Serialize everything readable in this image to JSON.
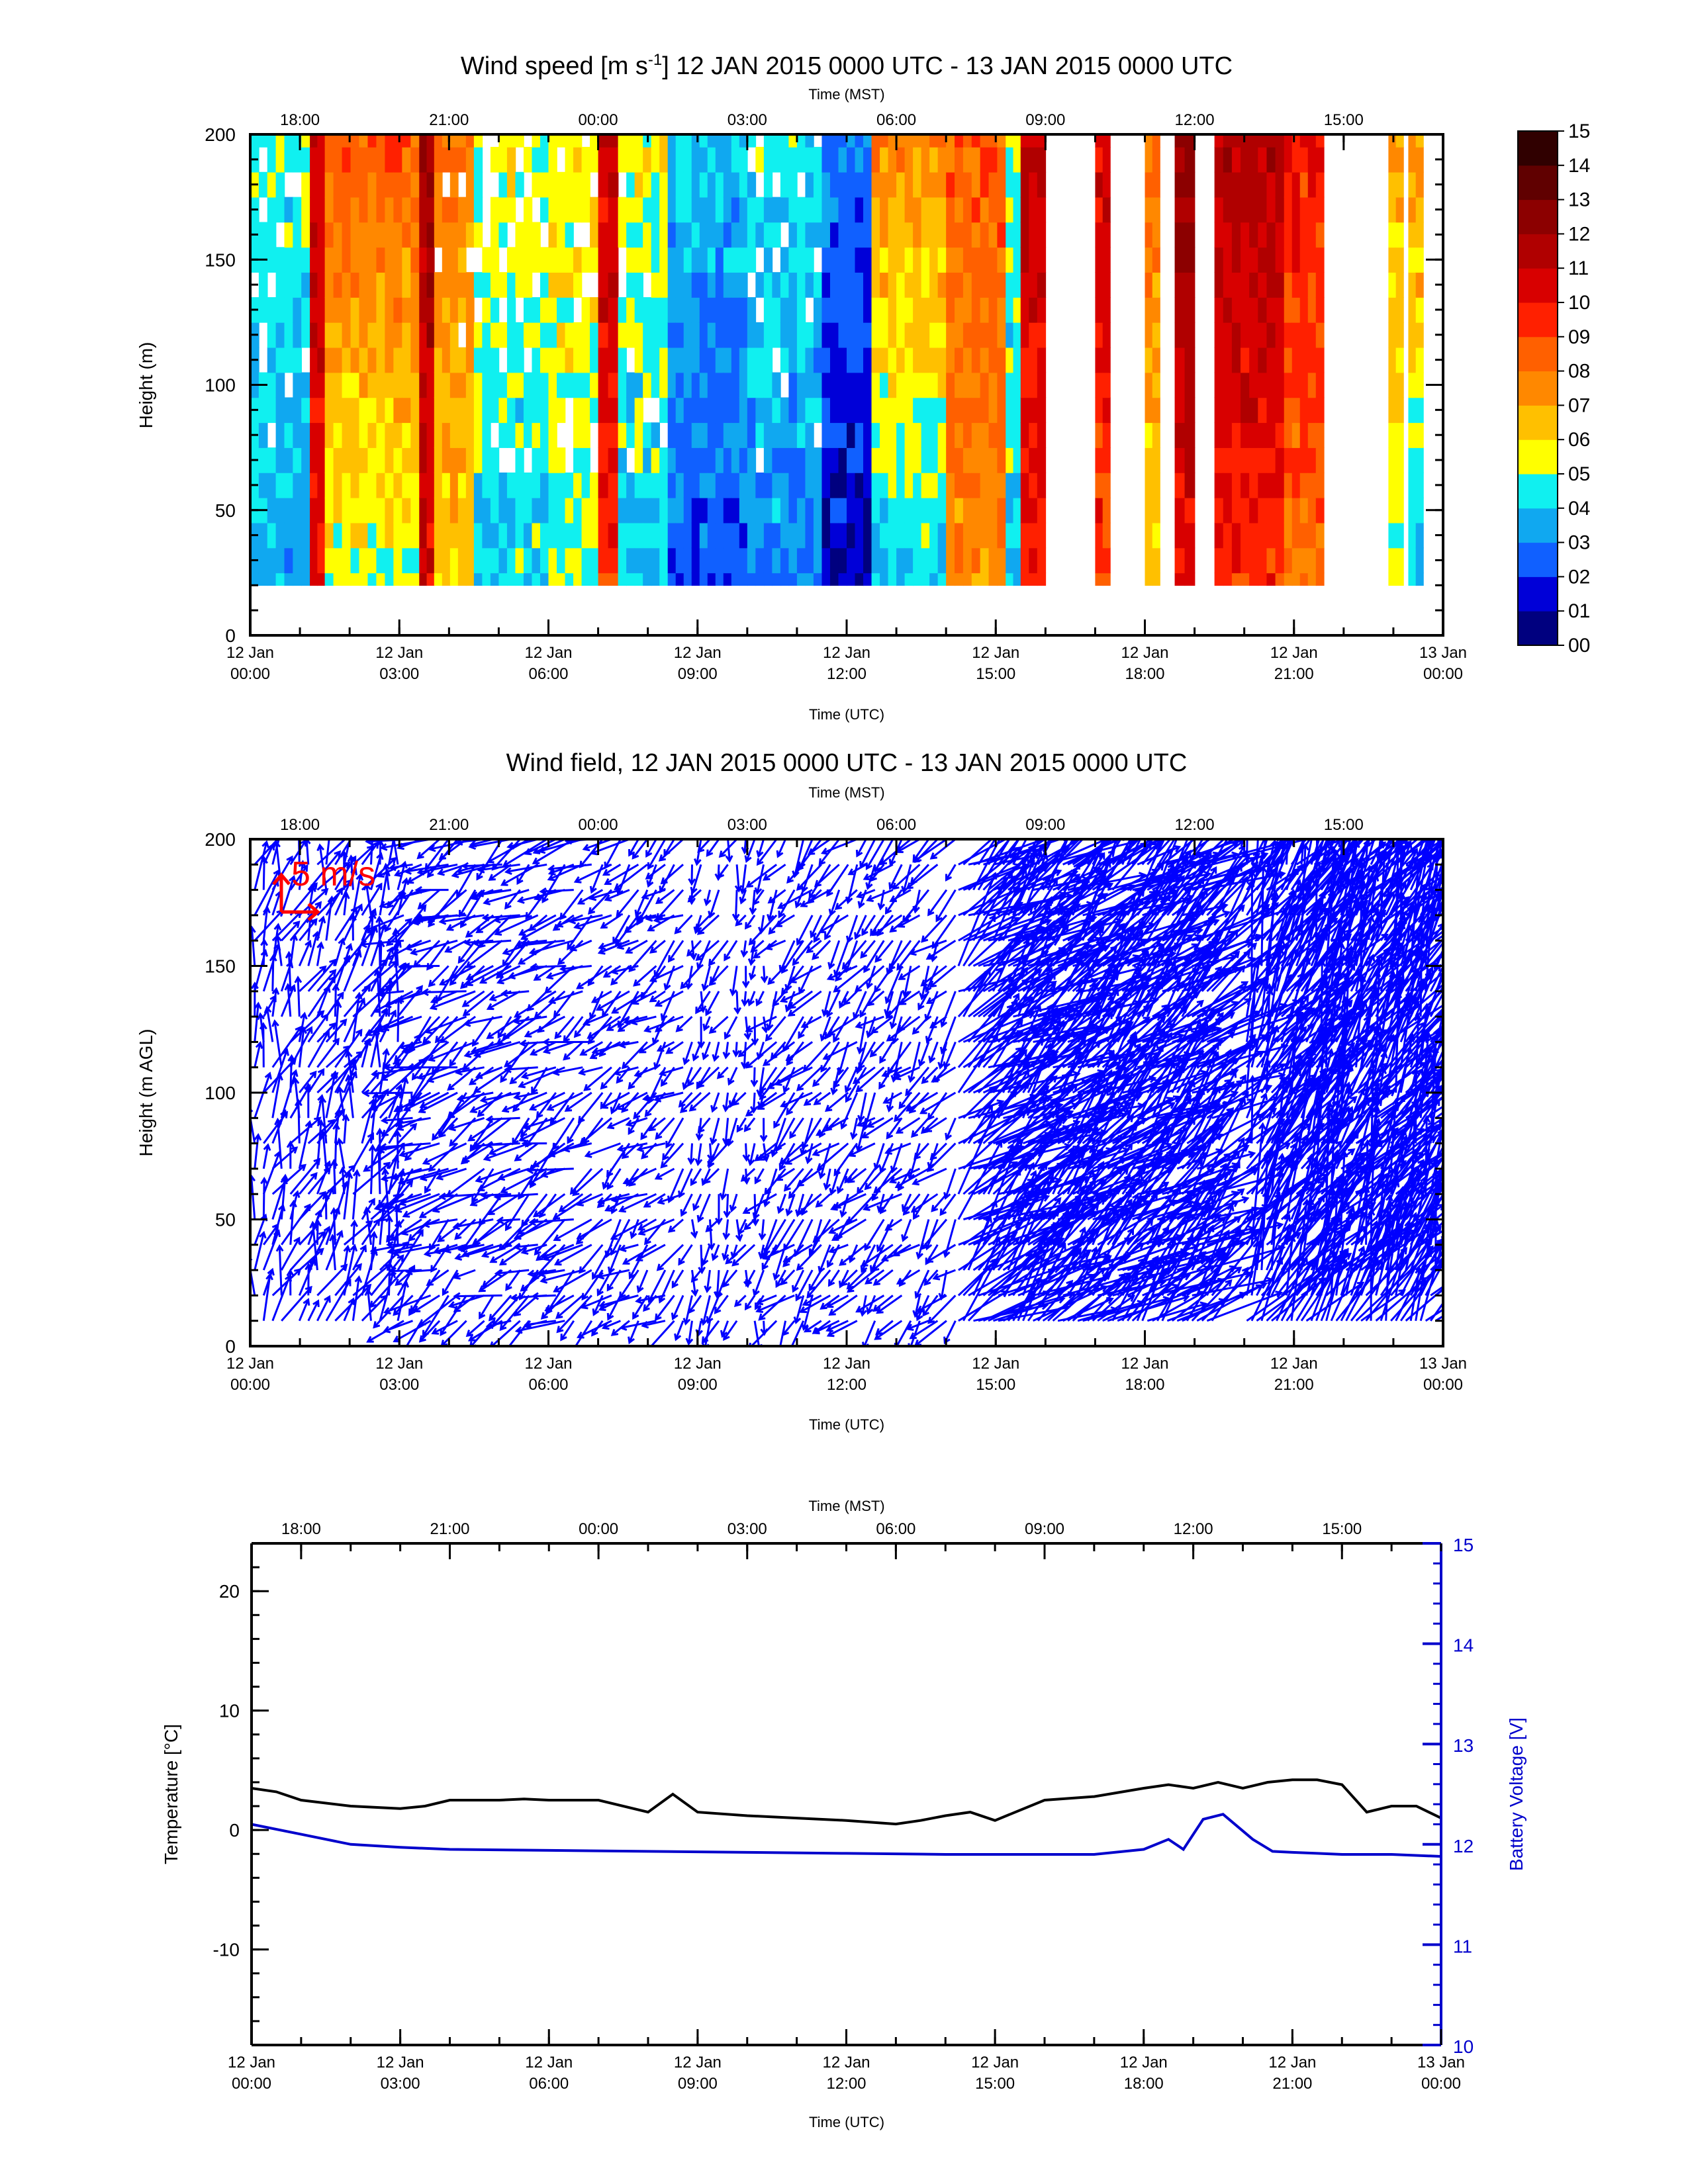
{
  "time_ticks": {
    "utc_top": [
      "12 Jan",
      "12 Jan",
      "12 Jan",
      "12 Jan",
      "12 Jan",
      "12 Jan",
      "12 Jan",
      "12 Jan",
      "13 Jan"
    ],
    "utc_bottom": [
      "00:00",
      "03:00",
      "06:00",
      "09:00",
      "12:00",
      "15:00",
      "18:00",
      "21:00",
      "00:00"
    ],
    "utc_hours": [
      0,
      3,
      6,
      9,
      12,
      15,
      18,
      21,
      24
    ],
    "mst": [
      "18:00",
      "21:00",
      "00:00",
      "03:00",
      "06:00",
      "09:00",
      "12:00",
      "15:00"
    ],
    "mst_hours_utc": [
      1,
      4,
      7,
      10,
      13,
      16,
      19,
      22
    ],
    "utc_label": "Time (UTC)",
    "mst_label": "Time (MST)"
  },
  "chart_data": [
    {
      "type": "heatmap",
      "title_pre": "Wind speed [m s",
      "title_sup": "-1",
      "title_post": "] 12 JAN 2015 0000 UTC - 13 JAN 2015 0000 UTC",
      "xlabel": "Time (UTC)",
      "x2label": "Time (MST)",
      "ylabel": "Height (m)",
      "xlim": [
        0,
        24
      ],
      "ylim": [
        0,
        200
      ],
      "yticks": [
        0,
        50,
        100,
        150,
        200
      ],
      "heights": [
        20,
        30,
        40,
        50,
        60,
        70,
        80,
        90,
        100,
        110,
        120,
        130,
        140,
        150,
        160,
        170,
        180,
        190,
        200
      ],
      "colorbar_labels": [
        "00",
        "01",
        "02",
        "03",
        "04",
        "05",
        "06",
        "07",
        "08",
        "09",
        "10",
        "11",
        "12",
        "13",
        "14",
        "15"
      ],
      "colors": [
        "#00007f",
        "#0000d8",
        "#1060ff",
        "#10a8f0",
        "#10f0f0",
        "#ffff00",
        "#ffc000",
        "#ff8800",
        "#ff6000",
        "#ff2000",
        "#d80000",
        "#b00000",
        "#8c0000",
        "#600000",
        "#300000"
      ],
      "segments": [
        {
          "t0": 0.0,
          "t1": 1.2,
          "low": 3.5,
          "high": 4.8,
          "gaps": true
        },
        {
          "t0": 1.2,
          "t1": 1.5,
          "low": 10.0,
          "high": 11.0
        },
        {
          "t0": 1.5,
          "t1": 3.4,
          "low": 5.2,
          "high": 8.6
        },
        {
          "t0": 3.4,
          "t1": 3.7,
          "low": 10.5,
          "high": 12.0
        },
        {
          "t0": 3.7,
          "t1": 4.5,
          "low": 6.0,
          "high": 8.0,
          "gaps": true
        },
        {
          "t0": 4.5,
          "t1": 6.0,
          "low": 4.2,
          "high": 5.5,
          "gaps": true
        },
        {
          "t0": 6.0,
          "t1": 7.0,
          "low": 4.8,
          "high": 5.8,
          "gaps": true
        },
        {
          "t0": 7.0,
          "t1": 7.4,
          "low": 9.5,
          "high": 11.0
        },
        {
          "t0": 7.4,
          "t1": 8.4,
          "low": 4.0,
          "high": 5.6,
          "gaps": true
        },
        {
          "t0": 8.4,
          "t1": 10.0,
          "low": 2.2,
          "high": 4.0
        },
        {
          "t0": 10.0,
          "t1": 11.5,
          "low": 3.0,
          "high": 4.5,
          "gaps": true
        },
        {
          "t0": 11.5,
          "t1": 12.5,
          "low": 1.0,
          "high": 3.0
        },
        {
          "t0": 12.5,
          "t1": 14.0,
          "low": 4.0,
          "high": 7.5
        },
        {
          "t0": 14.0,
          "t1": 15.2,
          "low": 7.5,
          "high": 8.6
        },
        {
          "t0": 15.2,
          "t1": 15.5,
          "low": 4.0,
          "high": 5.0
        },
        {
          "t0": 15.5,
          "t1": 16.0,
          "low": 9.5,
          "high": 11.0
        },
        {
          "t0": 17.0,
          "t1": 17.3,
          "low": 9.0,
          "high": 10.5
        },
        {
          "t0": 18.0,
          "t1": 18.3,
          "low": 6.0,
          "high": 8.0
        },
        {
          "t0": 18.6,
          "t1": 19.0,
          "low": 10.0,
          "high": 12.5
        },
        {
          "t0": 19.4,
          "t1": 20.8,
          "low": 9.5,
          "high": 11.5
        },
        {
          "t0": 20.8,
          "t1": 21.6,
          "low": 8.0,
          "high": 10.0
        },
        {
          "t0": 22.9,
          "t1": 23.2,
          "low": 5.0,
          "high": 7.0
        },
        {
          "t0": 23.3,
          "t1": 23.6,
          "low": 4.0,
          "high": 7.5
        }
      ]
    },
    {
      "type": "quiver",
      "title": "Wind field, 12 JAN 2015 0000 UTC - 13 JAN 2015 0000 UTC",
      "xlabel": "Time (UTC)",
      "x2label": "Time (MST)",
      "ylabel": "Height (m AGL)",
      "xlim": [
        0,
        24
      ],
      "ylim": [
        0,
        200
      ],
      "yticks": [
        0,
        50,
        100,
        150,
        200
      ],
      "reference_label": "5 m/s",
      "reference_color": "#ff0000",
      "arrow_color": "#0000ff",
      "heights": [
        10,
        20,
        30,
        40,
        50,
        60,
        70,
        80,
        90,
        100,
        110,
        120,
        130,
        140,
        150,
        160,
        170,
        180,
        190,
        200
      ],
      "periods": [
        {
          "t0": 0.0,
          "t1": 3.0,
          "dir": 200,
          "speed": 5
        },
        {
          "t0": 3.0,
          "t1": 7.0,
          "dir": 60,
          "speed": 5
        },
        {
          "t0": 7.0,
          "t1": 8.8,
          "dir": 50,
          "speed": 4
        },
        {
          "t0": 8.8,
          "t1": 10.5,
          "dir": 20,
          "speed": 3
        },
        {
          "t0": 10.5,
          "t1": 14.2,
          "dir": 40,
          "speed": 4
        },
        {
          "t0": 14.2,
          "t1": 19.4,
          "dir": 230,
          "speed": 10
        },
        {
          "t0": 20.0,
          "t1": 23.9,
          "dir": 210,
          "speed": 12
        }
      ]
    },
    {
      "type": "line",
      "xlabel": "Time (UTC)",
      "x2label": "Time (MST)",
      "ylabel": "Temperature [°C]",
      "y2label": "Battery Voltage [V]",
      "xlim": [
        0,
        24
      ],
      "ylim": [
        -18,
        24
      ],
      "y2lim": [
        10,
        15
      ],
      "yticks": [
        -10,
        0,
        10,
        20
      ],
      "y2ticks": [
        10,
        11,
        12,
        13,
        14,
        15
      ],
      "series": [
        {
          "axis": "left",
          "color": "#000000",
          "x": [
            0,
            0.5,
            1,
            2,
            3,
            3.5,
            4,
            5,
            5.5,
            6,
            7,
            8,
            8.5,
            9,
            10,
            11,
            12,
            13,
            13.5,
            14,
            14.5,
            15,
            16,
            17,
            18,
            18.5,
            19,
            19.5,
            20,
            20.5,
            21,
            21.5,
            22,
            22.5,
            23,
            23.5,
            24
          ],
          "y": [
            3.5,
            3.2,
            2.5,
            2.0,
            1.8,
            2.0,
            2.5,
            2.5,
            2.6,
            2.5,
            2.5,
            1.5,
            3.0,
            1.5,
            1.2,
            1.0,
            0.8,
            0.5,
            0.8,
            1.2,
            1.5,
            0.8,
            2.5,
            2.8,
            3.5,
            3.8,
            3.5,
            4.0,
            3.5,
            4.0,
            4.2,
            4.2,
            3.8,
            1.5,
            2.0,
            2.0,
            1.0
          ]
        },
        {
          "axis": "right",
          "color": "#0000cc",
          "x": [
            0,
            1,
            2,
            3,
            4,
            6,
            8,
            10,
            12,
            14,
            16,
            17,
            18,
            18.5,
            18.8,
            19.2,
            19.6,
            20.2,
            20.6,
            21,
            21.5,
            22,
            23,
            24
          ],
          "y": [
            12.2,
            12.1,
            12.0,
            11.97,
            11.95,
            11.94,
            11.93,
            11.92,
            11.91,
            11.9,
            11.9,
            11.9,
            11.95,
            12.05,
            11.95,
            12.25,
            12.3,
            12.05,
            11.93,
            11.92,
            11.91,
            11.9,
            11.9,
            11.88
          ]
        }
      ]
    }
  ]
}
